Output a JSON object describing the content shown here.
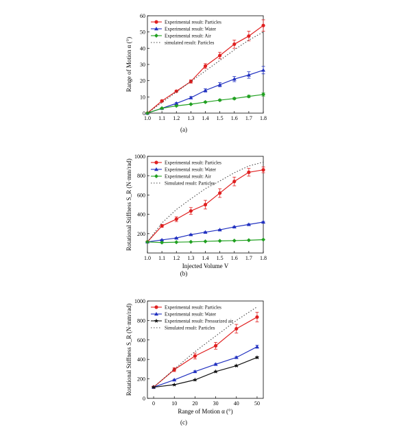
{
  "figure": {
    "captions": [
      "(a)",
      "(b)",
      "(c)"
    ]
  },
  "chart_data": [
    {
      "type": "line",
      "panel": "(a)",
      "xlabel": "",
      "ylabel": "Range of Motion α (°)",
      "xlim": [
        1.0,
        1.8
      ],
      "ylim": [
        0,
        60
      ],
      "x_ticks": [
        "1.0",
        "1.1",
        "1.2",
        "1.3",
        "1.4",
        "1.5",
        "1.6",
        "1.7",
        "1.8"
      ],
      "y_ticks": [
        "0",
        "10",
        "20",
        "30",
        "40",
        "50",
        "60"
      ],
      "legend_position": "top-left",
      "grid": false,
      "x": [
        1.0,
        1.1,
        1.2,
        1.3,
        1.4,
        1.5,
        1.6,
        1.7,
        1.8
      ],
      "series": [
        {
          "name": "Experimental result: Particles",
          "color": "#e02020",
          "marker": "circle",
          "values": [
            0,
            7.5,
            13.5,
            19.5,
            29,
            35.5,
            42.5,
            47.5,
            54
          ],
          "errors": [
            0,
            0.5,
            0.5,
            1,
            1.5,
            2,
            2.5,
            3,
            3.5
          ]
        },
        {
          "name": "Experimental result: Water",
          "color": "#2030c0",
          "marker": "triangle",
          "values": [
            0,
            3,
            6,
            9.5,
            14,
            17.5,
            21,
            23.5,
            26.5
          ],
          "errors": [
            0,
            0.3,
            0.5,
            0.7,
            1,
            1.3,
            1.6,
            2,
            2.3
          ]
        },
        {
          "name": "Experimental result: Air",
          "color": "#20a020",
          "marker": "diamond",
          "values": [
            0,
            3,
            4.5,
            5.5,
            6.8,
            8,
            9,
            10.3,
            11.5
          ],
          "errors": [
            0,
            0.3,
            0.3,
            0.3,
            0.4,
            0.5,
            0.6,
            0.7,
            1
          ]
        },
        {
          "name": "simulated result: Particles",
          "color": "#444444",
          "marker": "none",
          "dashed": true,
          "values": [
            0,
            6.5,
            13,
            19.5,
            26,
            32.5,
            39,
            45,
            50
          ]
        }
      ]
    },
    {
      "type": "line",
      "panel": "(b)",
      "xlabel": "Injected Volume V",
      "ylabel": "Rotational Stiffness S_R (N·mm/rad)",
      "xlim": [
        1.0,
        1.8
      ],
      "ylim": [
        0,
        1000
      ],
      "x_ticks": [
        "1.0",
        "1.1",
        "1.2",
        "1.3",
        "1.4",
        "1.5",
        "1.6",
        "1.7",
        "1.8"
      ],
      "y_ticks": [
        "200",
        "400",
        "600",
        "800",
        "1000"
      ],
      "legend_position": "top-left",
      "grid": false,
      "x": [
        1.0,
        1.1,
        1.2,
        1.3,
        1.4,
        1.5,
        1.6,
        1.7,
        1.8
      ],
      "series": [
        {
          "name": "Experimental result: Particles",
          "color": "#e02020",
          "marker": "circle",
          "values": [
            115,
            280,
            350,
            435,
            500,
            620,
            740,
            835,
            860
          ],
          "errors": [
            8,
            15,
            25,
            35,
            45,
            45,
            45,
            40,
            30
          ]
        },
        {
          "name": "Experimental result: Water",
          "color": "#2030c0",
          "marker": "triangle",
          "values": [
            115,
            135,
            155,
            190,
            215,
            240,
            270,
            295,
            320
          ],
          "errors": [
            4,
            5,
            5,
            5,
            5,
            5,
            6,
            6,
            7
          ]
        },
        {
          "name": "Experimental result: Air",
          "color": "#20a020",
          "marker": "diamond",
          "values": [
            115,
            108,
            112,
            115,
            120,
            125,
            128,
            132,
            138
          ],
          "errors": [
            3,
            3,
            3,
            3,
            3,
            3,
            3,
            3,
            3
          ]
        },
        {
          "name": "Simulated result: Particles",
          "color": "#444444",
          "marker": "none",
          "dashed": true,
          "values": [
            115,
            310,
            450,
            560,
            665,
            745,
            830,
            900,
            940
          ]
        }
      ]
    },
    {
      "type": "line",
      "panel": "(c)",
      "xlabel": "Range of Motion α (°)",
      "ylabel": "Rotational Stiffness S_R (N·mm/rad)",
      "xlim": [
        -3,
        53
      ],
      "ylim": [
        0,
        1000
      ],
      "x_ticks": [
        "0",
        "10",
        "20",
        "30",
        "40",
        "50"
      ],
      "y_ticks": [
        "0",
        "200",
        "400",
        "600",
        "800",
        "1000"
      ],
      "legend_position": "top-left",
      "grid": false,
      "series": [
        {
          "name": "Experimental result: Particles",
          "color": "#e02020",
          "marker": "circle",
          "x": [
            0,
            10,
            20,
            30,
            40,
            50
          ],
          "values": [
            115,
            295,
            435,
            540,
            715,
            835
          ],
          "errors": [
            10,
            20,
            30,
            35,
            45,
            50
          ]
        },
        {
          "name": "Experimental result: Water",
          "color": "#2030c0",
          "marker": "triangle",
          "x": [
            0,
            10,
            20,
            30,
            40,
            50
          ],
          "values": [
            115,
            190,
            275,
            350,
            420,
            530
          ],
          "errors": [
            5,
            6,
            8,
            8,
            10,
            15
          ]
        },
        {
          "name": "Experimental result: Pressurized air",
          "color": "#111111",
          "marker": "star",
          "x": [
            0,
            10,
            20,
            30,
            40,
            50
          ],
          "values": [
            115,
            140,
            190,
            275,
            335,
            420
          ],
          "errors": [
            4,
            4,
            5,
            6,
            7,
            8
          ]
        },
        {
          "name": "Simulated result: Particles",
          "color": "#444444",
          "marker": "none",
          "dashed": true,
          "x": [
            0,
            10,
            20,
            30,
            40,
            50
          ],
          "values": [
            115,
            300,
            480,
            640,
            800,
            940
          ]
        }
      ]
    }
  ]
}
